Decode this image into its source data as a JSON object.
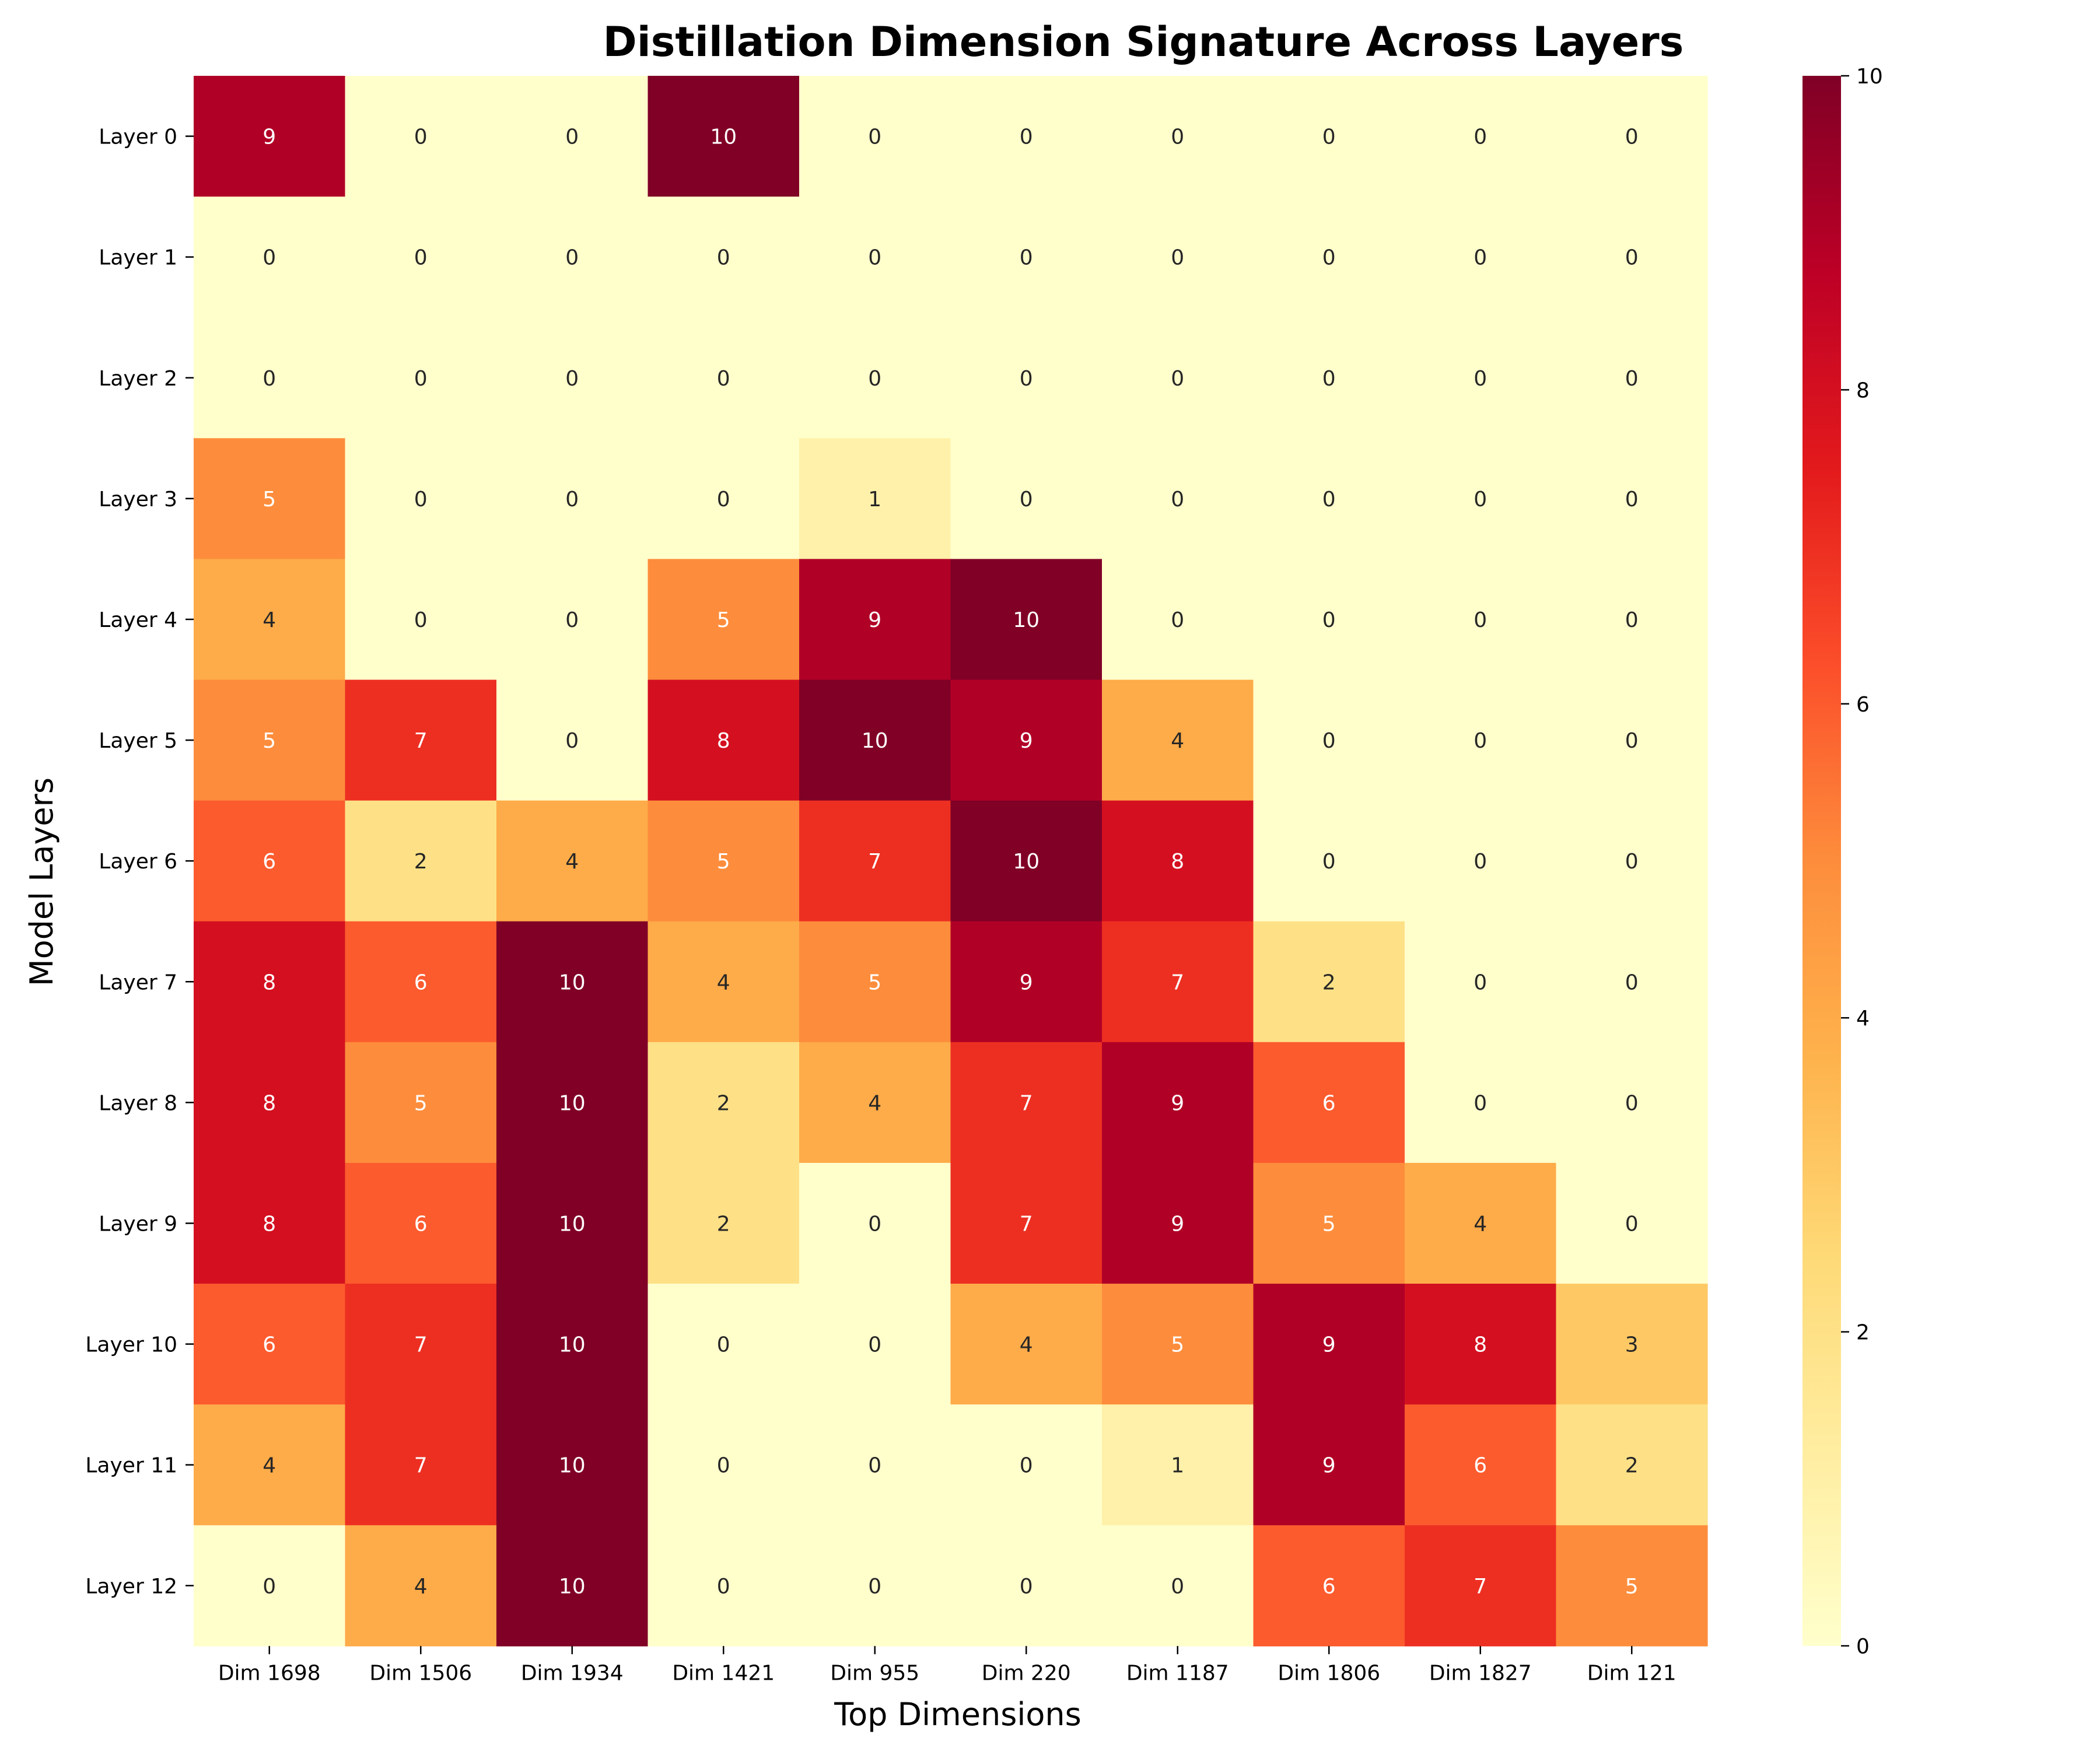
{
  "chart_data": {
    "type": "heatmap",
    "title": "Distillation Dimension Signature Across Layers",
    "xlabel": "Top Dimensions",
    "ylabel": "Model Layers",
    "x_categories": [
      "Dim 1698",
      "Dim 1506",
      "Dim 1934",
      "Dim 1421",
      "Dim 955",
      "Dim 220",
      "Dim 1187",
      "Dim 1806",
      "Dim 1827",
      "Dim 121"
    ],
    "y_categories": [
      "Layer 0",
      "Layer 1",
      "Layer 2",
      "Layer 3",
      "Layer 4",
      "Layer 5",
      "Layer 6",
      "Layer 7",
      "Layer 8",
      "Layer 9",
      "Layer 10",
      "Layer 11",
      "Layer 12"
    ],
    "values": [
      [
        9,
        0,
        0,
        10,
        0,
        0,
        0,
        0,
        0,
        0
      ],
      [
        0,
        0,
        0,
        0,
        0,
        0,
        0,
        0,
        0,
        0
      ],
      [
        0,
        0,
        0,
        0,
        0,
        0,
        0,
        0,
        0,
        0
      ],
      [
        5,
        0,
        0,
        0,
        1,
        0,
        0,
        0,
        0,
        0
      ],
      [
        4,
        0,
        0,
        5,
        9,
        10,
        0,
        0,
        0,
        0
      ],
      [
        5,
        7,
        0,
        8,
        10,
        9,
        4,
        0,
        0,
        0
      ],
      [
        6,
        2,
        4,
        5,
        7,
        10,
        8,
        0,
        0,
        0
      ],
      [
        8,
        6,
        10,
        4,
        5,
        9,
        7,
        2,
        0,
        0
      ],
      [
        8,
        5,
        10,
        2,
        4,
        7,
        9,
        6,
        0,
        0
      ],
      [
        8,
        6,
        10,
        2,
        0,
        7,
        9,
        5,
        4,
        0
      ],
      [
        6,
        7,
        10,
        0,
        0,
        4,
        5,
        9,
        8,
        3
      ],
      [
        4,
        7,
        10,
        0,
        0,
        0,
        1,
        9,
        6,
        2
      ],
      [
        0,
        4,
        10,
        0,
        0,
        0,
        0,
        6,
        7,
        5
      ]
    ],
    "value_range": [
      0,
      10
    ],
    "colormap": "YlOrRd",
    "colormap_stops": [
      "#ffffcc",
      "#ffeda0",
      "#fed976",
      "#feb24c",
      "#fd8d3c",
      "#fc4e2a",
      "#e31a1c",
      "#bd0026",
      "#800026"
    ],
    "colorbar_ticks": [
      0,
      2,
      4,
      6,
      8,
      10
    ],
    "annotations": true,
    "grid": false,
    "legend": "colorbar-right"
  }
}
